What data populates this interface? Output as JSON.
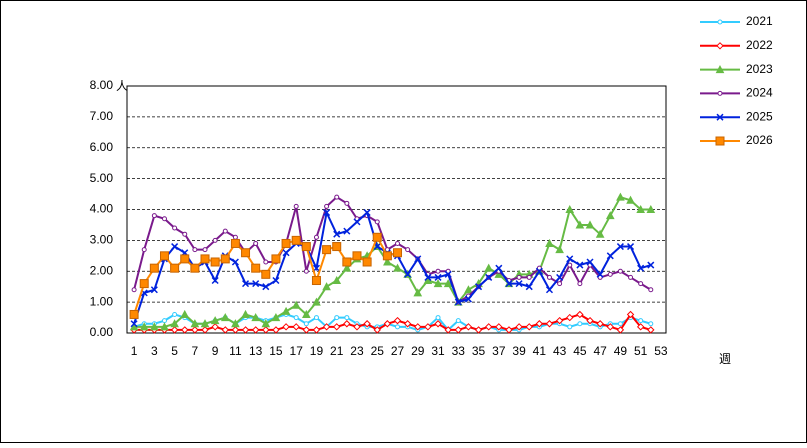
{
  "chart_data": {
    "type": "line",
    "y_unit": "人",
    "x_label": "週",
    "x": [
      1,
      2,
      3,
      4,
      5,
      6,
      7,
      8,
      9,
      10,
      11,
      12,
      13,
      14,
      15,
      16,
      17,
      18,
      19,
      20,
      21,
      22,
      23,
      24,
      25,
      26,
      27,
      28,
      29,
      30,
      31,
      32,
      33,
      34,
      35,
      36,
      37,
      38,
      39,
      40,
      41,
      42,
      43,
      44,
      45,
      46,
      47,
      48,
      49,
      50,
      51,
      52,
      53
    ],
    "xlim": [
      0.3,
      53.5
    ],
    "xticks": [
      1,
      3,
      5,
      7,
      9,
      11,
      13,
      15,
      17,
      19,
      21,
      23,
      25,
      27,
      29,
      31,
      33,
      35,
      37,
      39,
      41,
      43,
      45,
      47,
      49,
      51,
      53
    ],
    "ylim": [
      0,
      8
    ],
    "yticks": [
      {
        "value": 0,
        "label": "0.00"
      },
      {
        "value": 1,
        "label": "1.00"
      },
      {
        "value": 2,
        "label": "2.00"
      },
      {
        "value": 3,
        "label": "3.00"
      },
      {
        "value": 4,
        "label": "4.00"
      },
      {
        "value": 5,
        "label": "5.00"
      },
      {
        "value": 6,
        "label": "6.00"
      },
      {
        "value": 7,
        "label": "7.00"
      },
      {
        "value": 8,
        "label": "8.00"
      }
    ],
    "grid": true,
    "legend": "right",
    "series": [
      {
        "name": "2021",
        "color": "#33ccff",
        "marker": "circle",
        "values": [
          0.2,
          0.3,
          0.3,
          0.4,
          0.6,
          0.5,
          0.3,
          0.3,
          0.4,
          0.5,
          0.3,
          0.5,
          0.5,
          0.4,
          0.5,
          0.6,
          0.5,
          0.3,
          0.5,
          0.2,
          0.5,
          0.5,
          0.3,
          0.2,
          0.2,
          0.3,
          0.2,
          0.2,
          0.1,
          0.2,
          0.5,
          0.1,
          0.4,
          0.2,
          0.1,
          0.2,
          0.1,
          0.1,
          0.1,
          0.2,
          0.2,
          0.3,
          0.3,
          0.2,
          0.3,
          0.3,
          0.2,
          0.3,
          0.3,
          0.5,
          0.4,
          0.3,
          null
        ]
      },
      {
        "name": "2022",
        "color": "#ff0000",
        "marker": "diamond",
        "values": [
          0.1,
          0.1,
          0.1,
          0.1,
          0.1,
          0.1,
          0.1,
          0.1,
          0.2,
          0.1,
          0.1,
          0.1,
          0.1,
          0.1,
          0.1,
          0.2,
          0.2,
          0.1,
          0.1,
          0.2,
          0.2,
          0.3,
          0.2,
          0.3,
          0.1,
          0.3,
          0.4,
          0.3,
          0.2,
          0.2,
          0.3,
          0.1,
          0.1,
          0.2,
          0.1,
          0.2,
          0.2,
          0.1,
          0.2,
          0.2,
          0.3,
          0.3,
          0.4,
          0.5,
          0.6,
          0.4,
          0.3,
          0.2,
          0.1,
          0.6,
          0.2,
          0.1,
          null
        ]
      },
      {
        "name": "2023",
        "color": "#66bb44",
        "marker": "triangle",
        "values": [
          0.2,
          0.2,
          0.2,
          0.2,
          0.3,
          0.6,
          0.3,
          0.3,
          0.4,
          0.5,
          0.3,
          0.6,
          0.5,
          0.3,
          0.5,
          0.7,
          0.9,
          0.6,
          1.0,
          1.5,
          1.7,
          2.1,
          2.4,
          2.5,
          2.8,
          2.3,
          2.1,
          1.9,
          1.3,
          1.7,
          1.6,
          1.6,
          1.0,
          1.4,
          1.6,
          2.1,
          1.9,
          1.6,
          1.9,
          1.9,
          2.0,
          2.9,
          2.7,
          4.0,
          3.5,
          3.5,
          3.2,
          3.8,
          4.4,
          4.3,
          4.0,
          4.0,
          null
        ]
      },
      {
        "name": "2024",
        "color": "#7a1a8c",
        "marker": "circle",
        "values": [
          1.4,
          2.7,
          3.8,
          3.7,
          3.4,
          3.2,
          2.7,
          2.7,
          3.0,
          3.3,
          3.1,
          2.6,
          2.9,
          2.3,
          2.3,
          2.9,
          4.1,
          2.0,
          3.1,
          4.1,
          4.4,
          4.2,
          3.7,
          3.8,
          3.6,
          2.7,
          2.9,
          2.7,
          2.4,
          1.9,
          2.0,
          2.0,
          1.0,
          1.2,
          1.5,
          1.8,
          2.0,
          1.7,
          1.8,
          1.8,
          2.1,
          1.8,
          1.6,
          2.2,
          1.6,
          2.2,
          1.8,
          1.9,
          2.0,
          1.8,
          1.6,
          1.4,
          null
        ]
      },
      {
        "name": "2025",
        "color": "#0022dd",
        "marker": "cross",
        "values": [
          0.3,
          1.3,
          1.4,
          2.4,
          2.8,
          2.6,
          2.1,
          2.3,
          1.7,
          2.5,
          2.3,
          1.6,
          1.6,
          1.5,
          1.7,
          2.6,
          2.9,
          2.8,
          2.1,
          3.9,
          3.2,
          3.3,
          3.6,
          3.9,
          2.8,
          2.6,
          2.5,
          1.9,
          2.4,
          1.8,
          1.8,
          1.9,
          1.0,
          1.1,
          1.5,
          1.8,
          2.1,
          1.6,
          1.6,
          1.5,
          2.0,
          1.4,
          1.8,
          2.4,
          2.2,
          2.3,
          1.9,
          2.5,
          2.8,
          2.8,
          2.1,
          2.2,
          null
        ]
      },
      {
        "name": "2026",
        "color": "#ff8800",
        "marker": "square",
        "values": [
          0.6,
          1.6,
          2.1,
          2.5,
          2.1,
          2.4,
          2.1,
          2.4,
          2.3,
          2.4,
          2.9,
          2.6,
          2.1,
          1.9,
          2.4,
          2.9,
          3.0,
          2.8,
          1.7,
          2.7,
          2.8,
          2.3,
          2.5,
          2.3,
          3.1,
          2.5,
          2.6,
          null,
          null,
          null,
          null,
          null,
          null,
          null,
          null,
          null,
          null,
          null,
          null,
          null,
          null,
          null,
          null,
          null,
          null,
          null,
          null,
          null,
          null,
          null,
          null,
          null,
          null
        ]
      }
    ]
  }
}
